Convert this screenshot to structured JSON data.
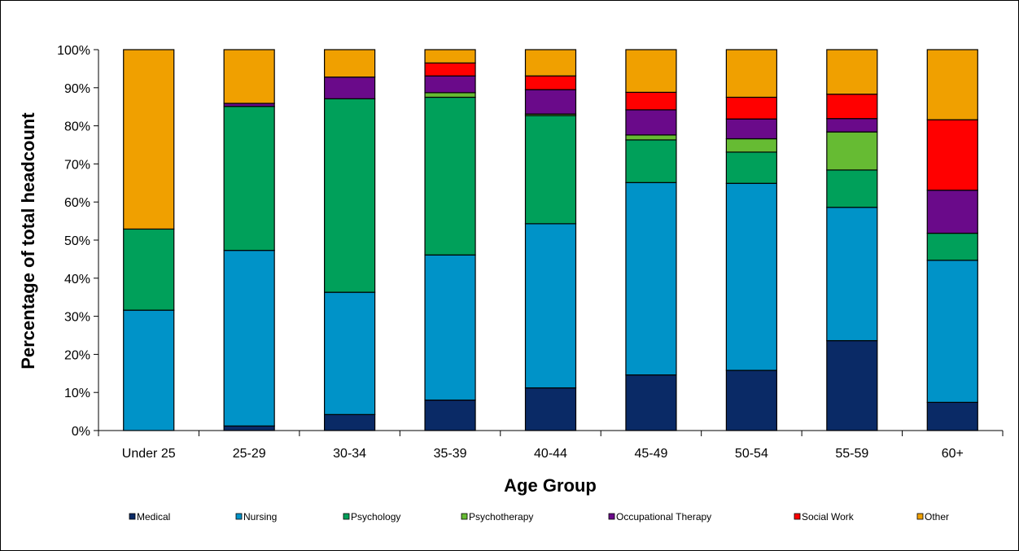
{
  "chart_data": {
    "type": "bar",
    "stacked": true,
    "normalized": true,
    "title": "",
    "xlabel": "Age Group",
    "ylabel": "Percentage of total headcount",
    "ylim": [
      0,
      100
    ],
    "yticks": [
      "0%",
      "10%",
      "20%",
      "30%",
      "40%",
      "50%",
      "60%",
      "70%",
      "80%",
      "90%",
      "100%"
    ],
    "grid": false,
    "legend_position": "bottom",
    "categories": [
      "Under 25",
      "25-29",
      "30-34",
      "35-39",
      "40-44",
      "45-49",
      "50-54",
      "55-59",
      "60+"
    ],
    "series": [
      {
        "name": "Medical",
        "color": "#0a2a66",
        "values": [
          0,
          1.2,
          4.2,
          8.0,
          11.2,
          14.6,
          15.8,
          23.6,
          7.4
        ]
      },
      {
        "name": "Nursing",
        "color": "#0093c8",
        "values": [
          31.6,
          46.1,
          32.1,
          38.1,
          43.1,
          50.5,
          49.1,
          35.0,
          37.3
        ]
      },
      {
        "name": "Psychology",
        "color": "#00a05a",
        "values": [
          21.3,
          37.8,
          50.8,
          41.4,
          28.4,
          11.2,
          8.2,
          9.8,
          7.1
        ]
      },
      {
        "name": "Psychotherapy",
        "color": "#66bb33",
        "values": [
          0,
          0,
          0,
          1.2,
          0.4,
          1.3,
          3.5,
          10.0,
          0
        ]
      },
      {
        "name": "Occupational Therapy",
        "color": "#6a0a8a",
        "values": [
          0,
          0.8,
          5.7,
          4.4,
          6.4,
          6.6,
          5.2,
          3.5,
          11.3
        ]
      },
      {
        "name": "Social Work",
        "color": "#ff0000",
        "values": [
          0,
          0,
          0,
          3.4,
          3.6,
          4.6,
          5.7,
          6.4,
          18.5
        ]
      },
      {
        "name": "Other",
        "color": "#f0a000",
        "values": [
          47.1,
          14.1,
          7.2,
          3.5,
          6.9,
          11.2,
          12.5,
          11.7,
          18.4
        ]
      }
    ]
  }
}
